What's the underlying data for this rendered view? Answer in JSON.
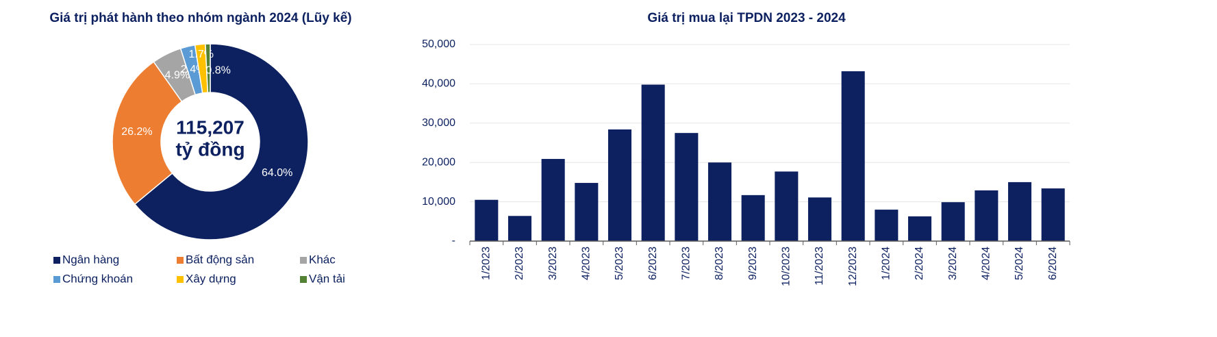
{
  "chart_data": [
    {
      "type": "donut",
      "title": "Giá trị phát hành theo nhóm ngành 2024 (Lũy kế)",
      "annotations": [
        "115,207",
        "tỷ đồng"
      ],
      "categories": [
        "Ngân hàng",
        "Bất động sản",
        "Khác",
        "Chứng khoán",
        "Xây dựng",
        "Vận tải"
      ],
      "values": [
        64.0,
        26.2,
        4.9,
        2.4,
        1.7,
        0.8
      ],
      "value_labels": [
        "64.0%",
        "26.2%",
        "4.9%",
        "2.4%",
        "1.7%",
        "0.8%"
      ],
      "colors": [
        "#0d2160",
        "#ed7d31",
        "#a5a5a5",
        "#5b9bd5",
        "#ffc000",
        "#548235"
      ],
      "legend": "bottom"
    },
    {
      "type": "bar",
      "title": "Giá trị mua lại TPDN 2023 - 2024",
      "categories": [
        "1/2023",
        "2/2023",
        "3/2023",
        "4/2023",
        "5/2023",
        "6/2023",
        "7/2023",
        "8/2023",
        "9/2023",
        "10/2023",
        "11/2023",
        "12/2023",
        "1/2024",
        "2/2024",
        "3/2024",
        "4/2024",
        "5/2024",
        "6/2024"
      ],
      "values": [
        10500,
        6400,
        20900,
        14800,
        28400,
        39800,
        27500,
        20000,
        11700,
        17700,
        11100,
        43200,
        8000,
        6300,
        9900,
        12900,
        15000,
        13400
      ],
      "color": "#0d2160",
      "ylim": [
        0,
        50000
      ],
      "yticks": [
        {
          "value": 0,
          "label": "-"
        },
        {
          "value": 10000,
          "label": "10,000"
        },
        {
          "value": 20000,
          "label": "20,000"
        },
        {
          "value": 30000,
          "label": "30,000"
        },
        {
          "value": 40000,
          "label": "40,000"
        },
        {
          "value": 50000,
          "label": "50,000"
        }
      ],
      "grid": true
    }
  ]
}
